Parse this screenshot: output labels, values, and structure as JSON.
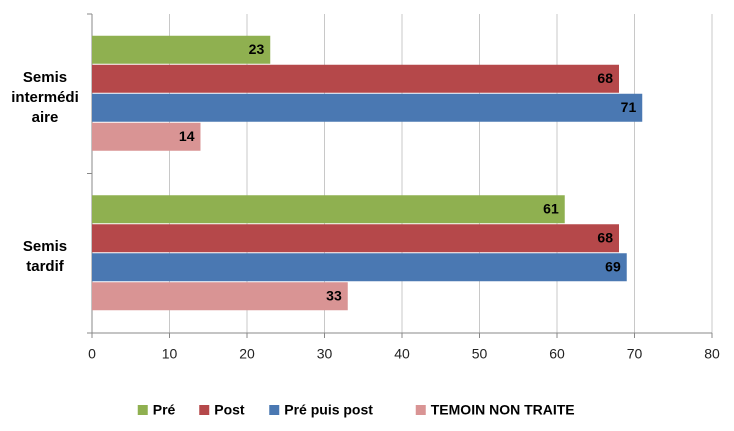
{
  "chart_data": {
    "type": "hbar",
    "categories": [
      "Semis intermédiaire",
      "Semis tardif"
    ],
    "series": [
      {
        "name": "Pré",
        "color": "#8fb050",
        "values": [
          23,
          61
        ]
      },
      {
        "name": "Post",
        "color": "#b5484a",
        "values": [
          68,
          68
        ]
      },
      {
        "name": "Pré puis post",
        "color": "#4a78b2",
        "values": [
          71,
          69
        ]
      },
      {
        "name": "TEMOIN NON TRAITE",
        "color": "#d99494",
        "values": [
          14,
          33
        ]
      }
    ],
    "xlim": [
      0,
      80
    ],
    "xticks": [
      0,
      10,
      20,
      30,
      40,
      50,
      60,
      70,
      80
    ],
    "grid": true,
    "legend": "bottom"
  }
}
